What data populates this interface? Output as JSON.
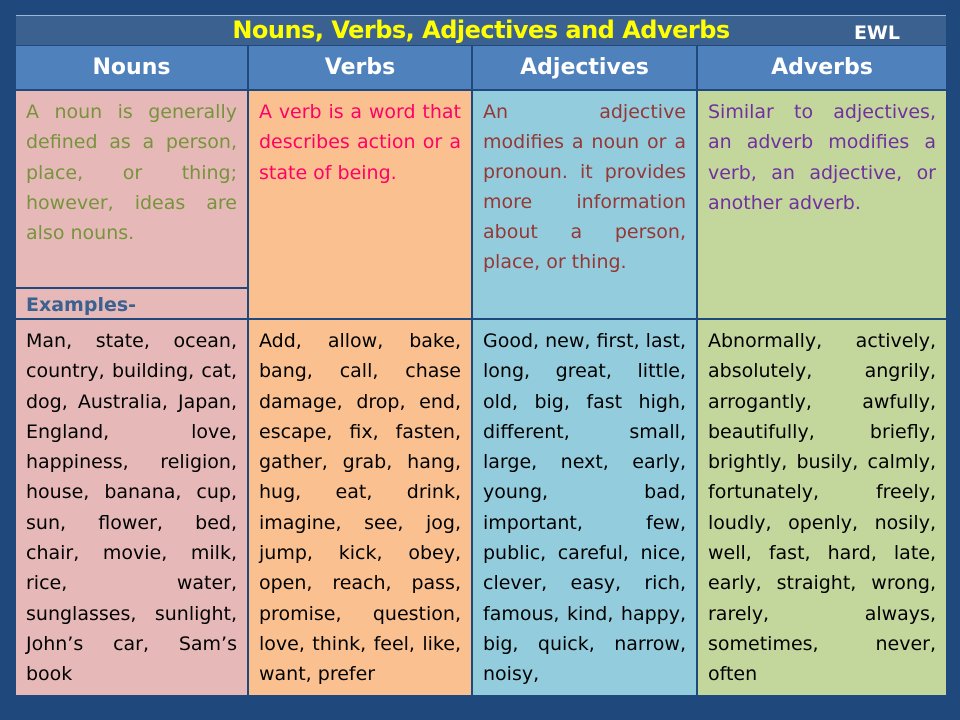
{
  "title": "Nouns, Verbs, Adjectives and Adverbs",
  "watermark": "EWL",
  "headers": [
    "Nouns",
    "Verbs",
    "Adjectives",
    "Adverbs"
  ],
  "definitions": {
    "nouns": "A noun is generally defined as a person, place, or thing; however, ideas are also nouns.",
    "verbs": "A verb is a word that describes action or a state of being.",
    "adjectives": "An adjective modifies a noun or a pronoun. it provides more information about a person, place, or thing.",
    "adverbs": "Similar to adjectives, an adverb modifies a verb, an adjective, or another adverb."
  },
  "examples_label": "Examples-",
  "examples": {
    "nouns": "Man, state, ocean, country, building, cat, dog, Australia, Japan, England, love, happiness, religion, house, banana, cup, sun, flower, bed, chair, movie, milk, rice, water, sunglasses, sunlight, John’s car, Sam’s book",
    "verbs": "Add, allow, bake, bang, call, chase damage, drop, end, escape, fix, fasten, gather, grab, hang, hug, eat, drink, imagine, see, jog, jump, kick, obey, open, reach, pass, promise, question, love, think, feel, like, want, prefer",
    "adjectives": "Good, new, first, last, long, great, little, old, big, fast high, different, small, large, next, early, young, bad, important, few, public, careful, nice, clever, easy, rich, famous, kind, happy, big, quick, narrow, noisy,",
    "adverbs": "Abnormally, actively, absolutely, angrily, arrogantly, awfully, beautifully, briefly, brightly, busily, calmly, fortunately, freely, loudly, openly, nosily, well, fast, hard, late, early, straight, wrong, rarely, always, sometimes, never, often"
  },
  "colors": {
    "background": "#1f497d",
    "header": "#4f81bd",
    "title_text": "#ffff00",
    "nouns_fill": "#e6b9b8",
    "verbs_fill": "#fac090",
    "adjectives_fill": "#93cddd",
    "adverbs_fill": "#c3d69b",
    "nouns_text": "#77933c",
    "verbs_text": "#ff0066",
    "adjectives_text": "#953735",
    "adverbs_text": "#7030a0"
  }
}
